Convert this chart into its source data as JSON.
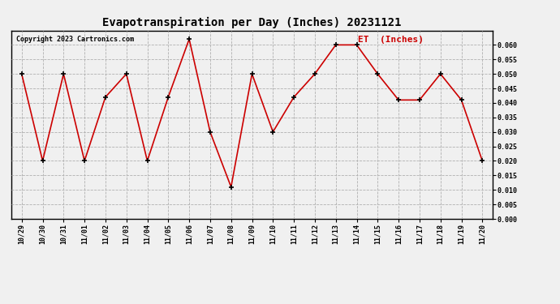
{
  "title": "Evapotranspiration per Day (Inches) 20231121",
  "copyright": "Copyright 2023 Cartronics.com",
  "legend_label": "ET  (Inches)",
  "dates": [
    "10/29",
    "10/30",
    "10/31",
    "11/01",
    "11/02",
    "11/03",
    "11/04",
    "11/05",
    "11/06",
    "11/07",
    "11/08",
    "11/09",
    "11/10",
    "11/11",
    "11/12",
    "11/13",
    "11/14",
    "11/15",
    "11/16",
    "11/17",
    "11/18",
    "11/19",
    "11/20"
  ],
  "values": [
    0.05,
    0.02,
    0.05,
    0.02,
    0.042,
    0.05,
    0.02,
    0.042,
    0.062,
    0.03,
    0.011,
    0.05,
    0.03,
    0.042,
    0.05,
    0.06,
    0.06,
    0.05,
    0.041,
    0.041,
    0.05,
    0.041,
    0.02
  ],
  "line_color": "#cc0000",
  "marker_color": "#000000",
  "background_color": "#f0f0f0",
  "grid_color": "#b0b0b0",
  "ylim": [
    0.0,
    0.065
  ],
  "yticks": [
    0.0,
    0.005,
    0.01,
    0.015,
    0.02,
    0.025,
    0.03,
    0.035,
    0.04,
    0.045,
    0.05,
    0.055,
    0.06
  ],
  "title_fontsize": 10,
  "copyright_fontsize": 6,
  "legend_fontsize": 8,
  "tick_fontsize": 6,
  "legend_color": "#cc0000"
}
